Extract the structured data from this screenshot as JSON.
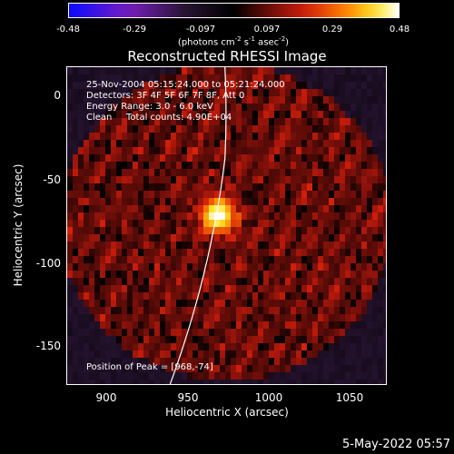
{
  "colorbar": {
    "ticks": [
      "-0.48",
      "-0.29",
      "-0.097",
      "0.097",
      "0.29",
      "0.48"
    ],
    "units_text": "(photons cm",
    "units_exp1": "-2",
    "units_s": " s",
    "units_exp2": "-1",
    "units_asec": " asec",
    "units_exp3": "-2",
    "units_close": ")"
  },
  "chart_data": {
    "type": "heatmap",
    "title": "Reconstructed RHESSI Image",
    "xlabel": "Heliocentric X (arcsec)",
    "ylabel": "Heliocentric Y (arcsec)",
    "xlim": [
      878,
      1068
    ],
    "ylim": [
      -175,
      15
    ],
    "x_ticks": [
      "900",
      "950",
      "1000",
      "1050"
    ],
    "y_ticks": [
      "0",
      "-50",
      "-100",
      "-150"
    ],
    "color_range": [
      -0.48,
      0.48
    ],
    "peak": {
      "x": 968,
      "y": -74,
      "value": 0.48
    },
    "annotations": [
      "25-Nov-2004 05:15:24.000 to 05:21:24.000",
      "Detectors: 3F 4F 5F 6F 7F 8F, Att 0",
      "Energy Range: 3.0 - 6.0 keV",
      "Clean",
      "Total counts: 4.90E+04"
    ],
    "peak_label": "Position of Peak = [968,-74]",
    "limb": "white curve (solar limb)"
  },
  "footer": {
    "date": "5-May-2022 05:57"
  }
}
